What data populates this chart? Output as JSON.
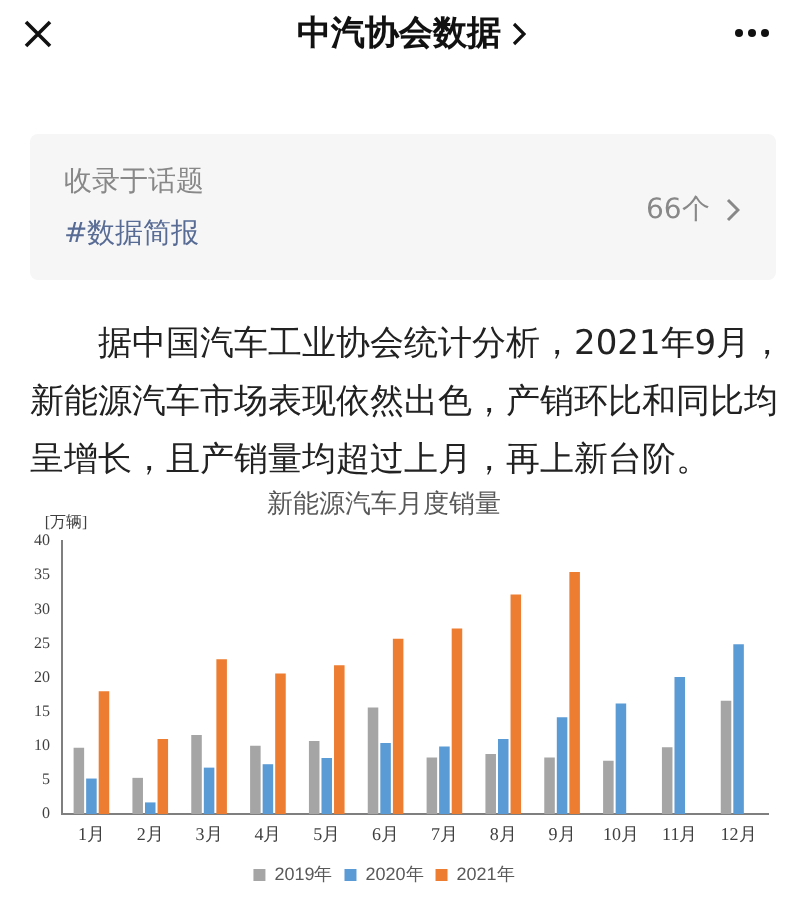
{
  "chart_data": {
    "type": "bar",
    "title": "新能源汽车月度销量",
    "ylabel": "[万辆]",
    "categories": [
      "1月",
      "2月",
      "3月",
      "4月",
      "5月",
      "6月",
      "7月",
      "8月",
      "9月",
      "10月",
      "11月",
      "12月"
    ],
    "series": [
      {
        "name": "2019年",
        "color": "#a5a5a5",
        "values": [
          9.7,
          5.3,
          11.6,
          10.0,
          10.7,
          15.6,
          8.3,
          8.8,
          8.3,
          7.8,
          9.8,
          16.6
        ]
      },
      {
        "name": "2020年",
        "color": "#5b9bd5",
        "values": [
          5.2,
          1.7,
          6.8,
          7.3,
          8.2,
          10.4,
          9.9,
          11.0,
          14.2,
          16.2,
          20.1,
          24.9
        ]
      },
      {
        "name": "2021年",
        "color": "#ed7d31",
        "values": [
          18.0,
          11.0,
          22.7,
          20.6,
          21.8,
          25.7,
          27.2,
          32.2,
          35.5,
          null,
          null,
          null
        ]
      }
    ],
    "ylim": [
      0,
      40
    ],
    "yticks": [
      0,
      5,
      10,
      15,
      20,
      25,
      30,
      35,
      40
    ],
    "grid": false,
    "legend": "bottom",
    "annotations": [
      "中汽协会数据",
      "收录于话题",
      "#数据简报",
      "66个",
      "据中国汽车工业协会统计分析，2021年9月，新能源汽车市场表现依然出色，产销环比和同比均呈增长，且产销量均超过上月，再上新台阶。"
    ]
  }
}
